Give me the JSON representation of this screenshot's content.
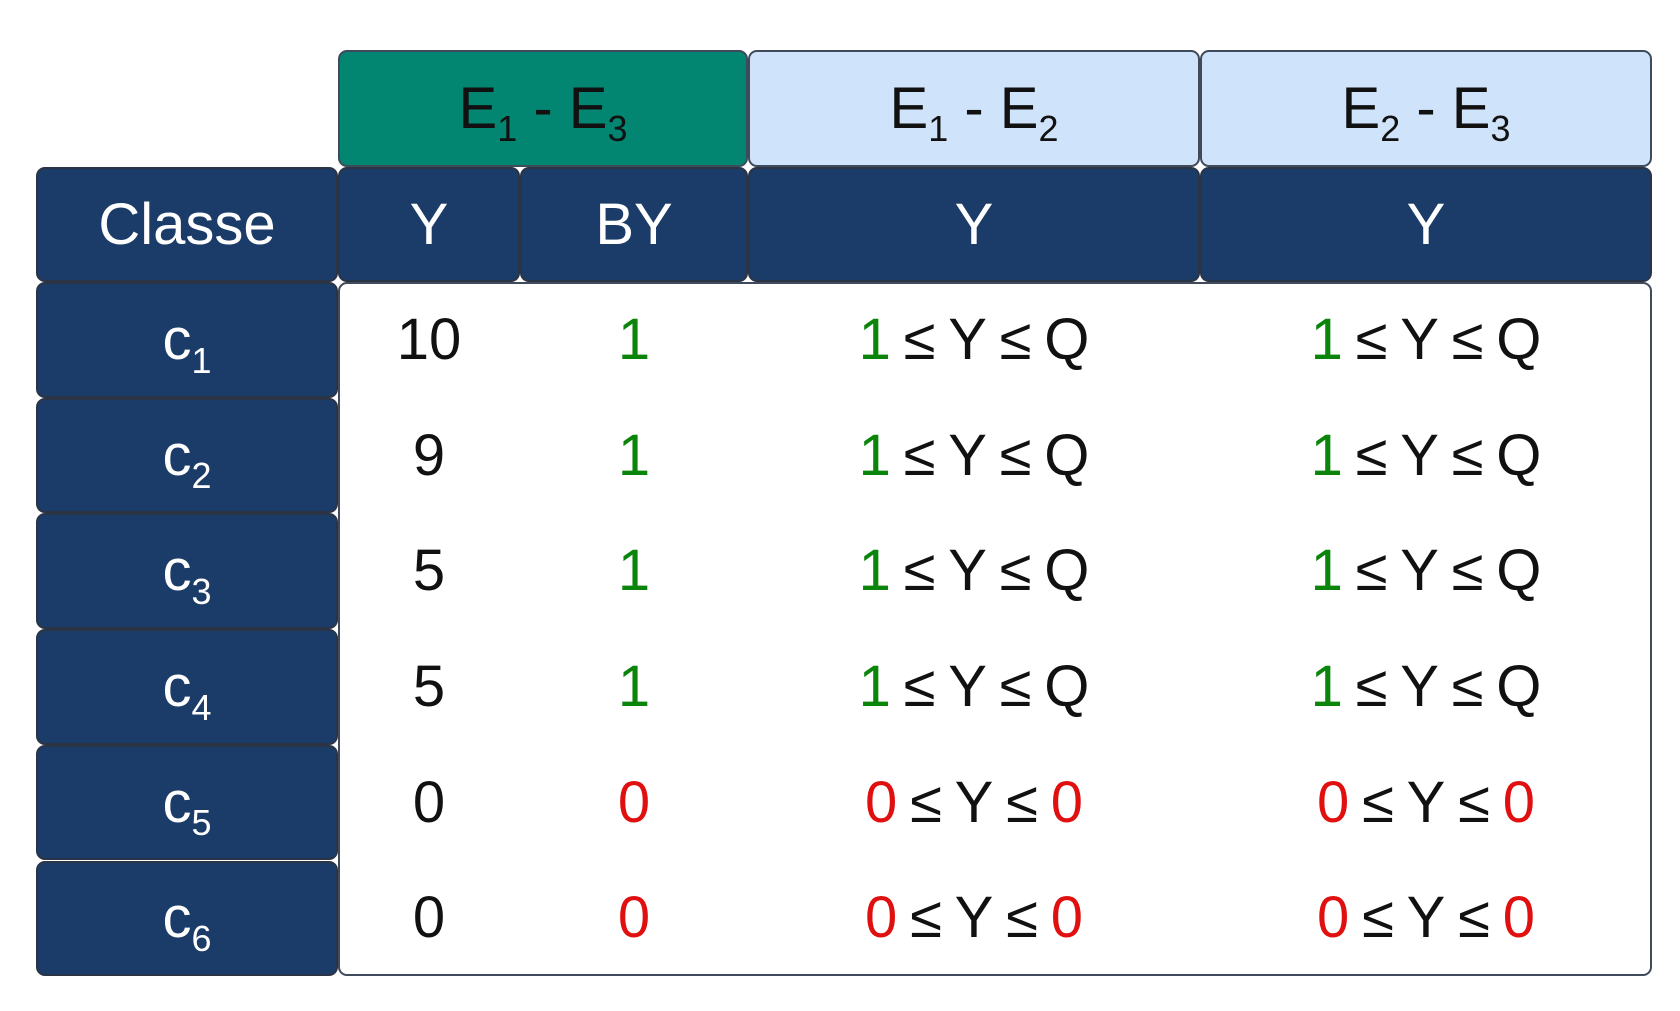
{
  "colors": {
    "navy": "#1b3c69",
    "teal": "#028571",
    "light_blue": "#cfe3fb",
    "green": "#0a850a",
    "red": "#e01010",
    "text": "#111111"
  },
  "header_groups": [
    {
      "label": "E",
      "sub_a": "1",
      "sep": " - ",
      "label_b": "E",
      "sub_b": "3",
      "style": "teal"
    },
    {
      "label": "E",
      "sub_a": "1",
      "sep": " - ",
      "label_b": "E",
      "sub_b": "2",
      "style": "light-blue"
    },
    {
      "label": "E",
      "sub_a": "2",
      "sep": " - ",
      "label_b": "E",
      "sub_b": "3",
      "style": "light-blue"
    }
  ],
  "column_headers": {
    "classe": "Classe",
    "y1": "Y",
    "by": "BY",
    "y2": "Y",
    "y3": "Y"
  },
  "relation": {
    "leq": "≤",
    "var": "Y",
    "upper": "Q"
  },
  "rows": [
    {
      "class": "c",
      "class_sub": "1",
      "y": "10",
      "by": "1",
      "low": "1",
      "high": "Q",
      "status": "green"
    },
    {
      "class": "c",
      "class_sub": "2",
      "y": "9",
      "by": "1",
      "low": "1",
      "high": "Q",
      "status": "green"
    },
    {
      "class": "c",
      "class_sub": "3",
      "y": "5",
      "by": "1",
      "low": "1",
      "high": "Q",
      "status": "green"
    },
    {
      "class": "c",
      "class_sub": "4",
      "y": "5",
      "by": "1",
      "low": "1",
      "high": "Q",
      "status": "green"
    },
    {
      "class": "c",
      "class_sub": "5",
      "y": "0",
      "by": "0",
      "low": "0",
      "high": "0",
      "status": "red"
    },
    {
      "class": "c",
      "class_sub": "6",
      "y": "0",
      "by": "0",
      "low": "0",
      "high": "0",
      "status": "red"
    }
  ]
}
